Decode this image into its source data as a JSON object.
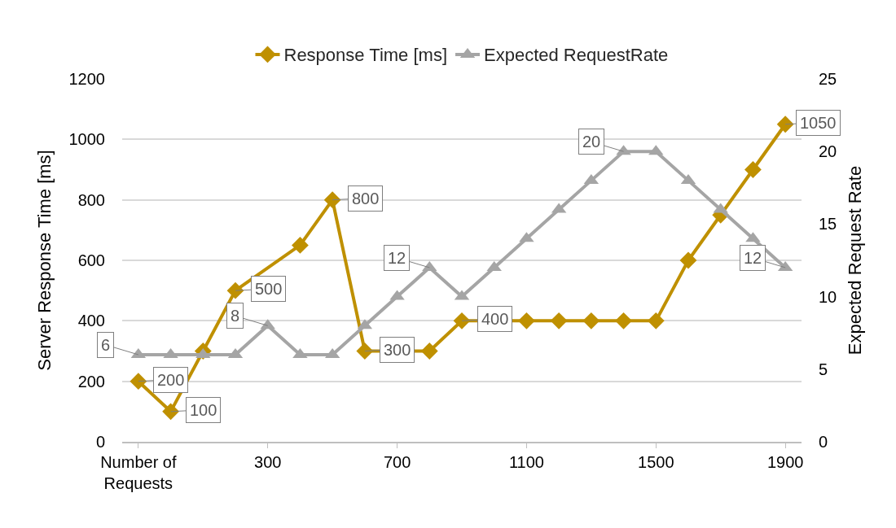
{
  "chart_data": {
    "type": "line",
    "categories": [
      "Number of Requests",
      null,
      null,
      null,
      "300",
      null,
      null,
      null,
      "700",
      null,
      null,
      null,
      "1100",
      null,
      null,
      null,
      "1500",
      null,
      null,
      null,
      "1900"
    ],
    "xlabel": null,
    "ylabel": "Server Response Time [ms]",
    "y2label": "Expected Request Rate",
    "ylim": [
      0,
      1200
    ],
    "yticks": [
      0,
      200,
      400,
      600,
      800,
      1000,
      1200
    ],
    "y2lim": [
      0,
      25
    ],
    "y2ticks": [
      0,
      5,
      10,
      15,
      20,
      25
    ],
    "grid": "y",
    "legend": "top",
    "line_style": "solid",
    "series": [
      {
        "name": "Response Time [ms]",
        "color": "#bf9000",
        "marker": "diamond",
        "values": [
          200,
          100,
          300,
          500,
          null,
          650,
          800,
          300,
          null,
          300,
          400,
          400,
          400,
          400,
          400,
          400,
          400,
          600,
          750,
          900,
          1050
        ],
        "value_labels": [
          "200",
          "100",
          null,
          "500",
          null,
          null,
          "800",
          "300",
          null,
          null,
          "400",
          null,
          null,
          null,
          null,
          null,
          null,
          null,
          null,
          null,
          "1050"
        ]
      },
      {
        "name": "Expected RequestRate",
        "color": "#a5a5a5",
        "marker": "triangle",
        "axis": "y2",
        "values": [
          6,
          6,
          6,
          6,
          8,
          6,
          6,
          8,
          10,
          12,
          10,
          12,
          14,
          16,
          18,
          20,
          20,
          18,
          16,
          14,
          12
        ],
        "value_labels": [
          "6",
          null,
          null,
          null,
          "8",
          null,
          null,
          null,
          null,
          "12",
          null,
          null,
          null,
          null,
          null,
          "20",
          null,
          null,
          null,
          null,
          "12"
        ]
      }
    ]
  }
}
